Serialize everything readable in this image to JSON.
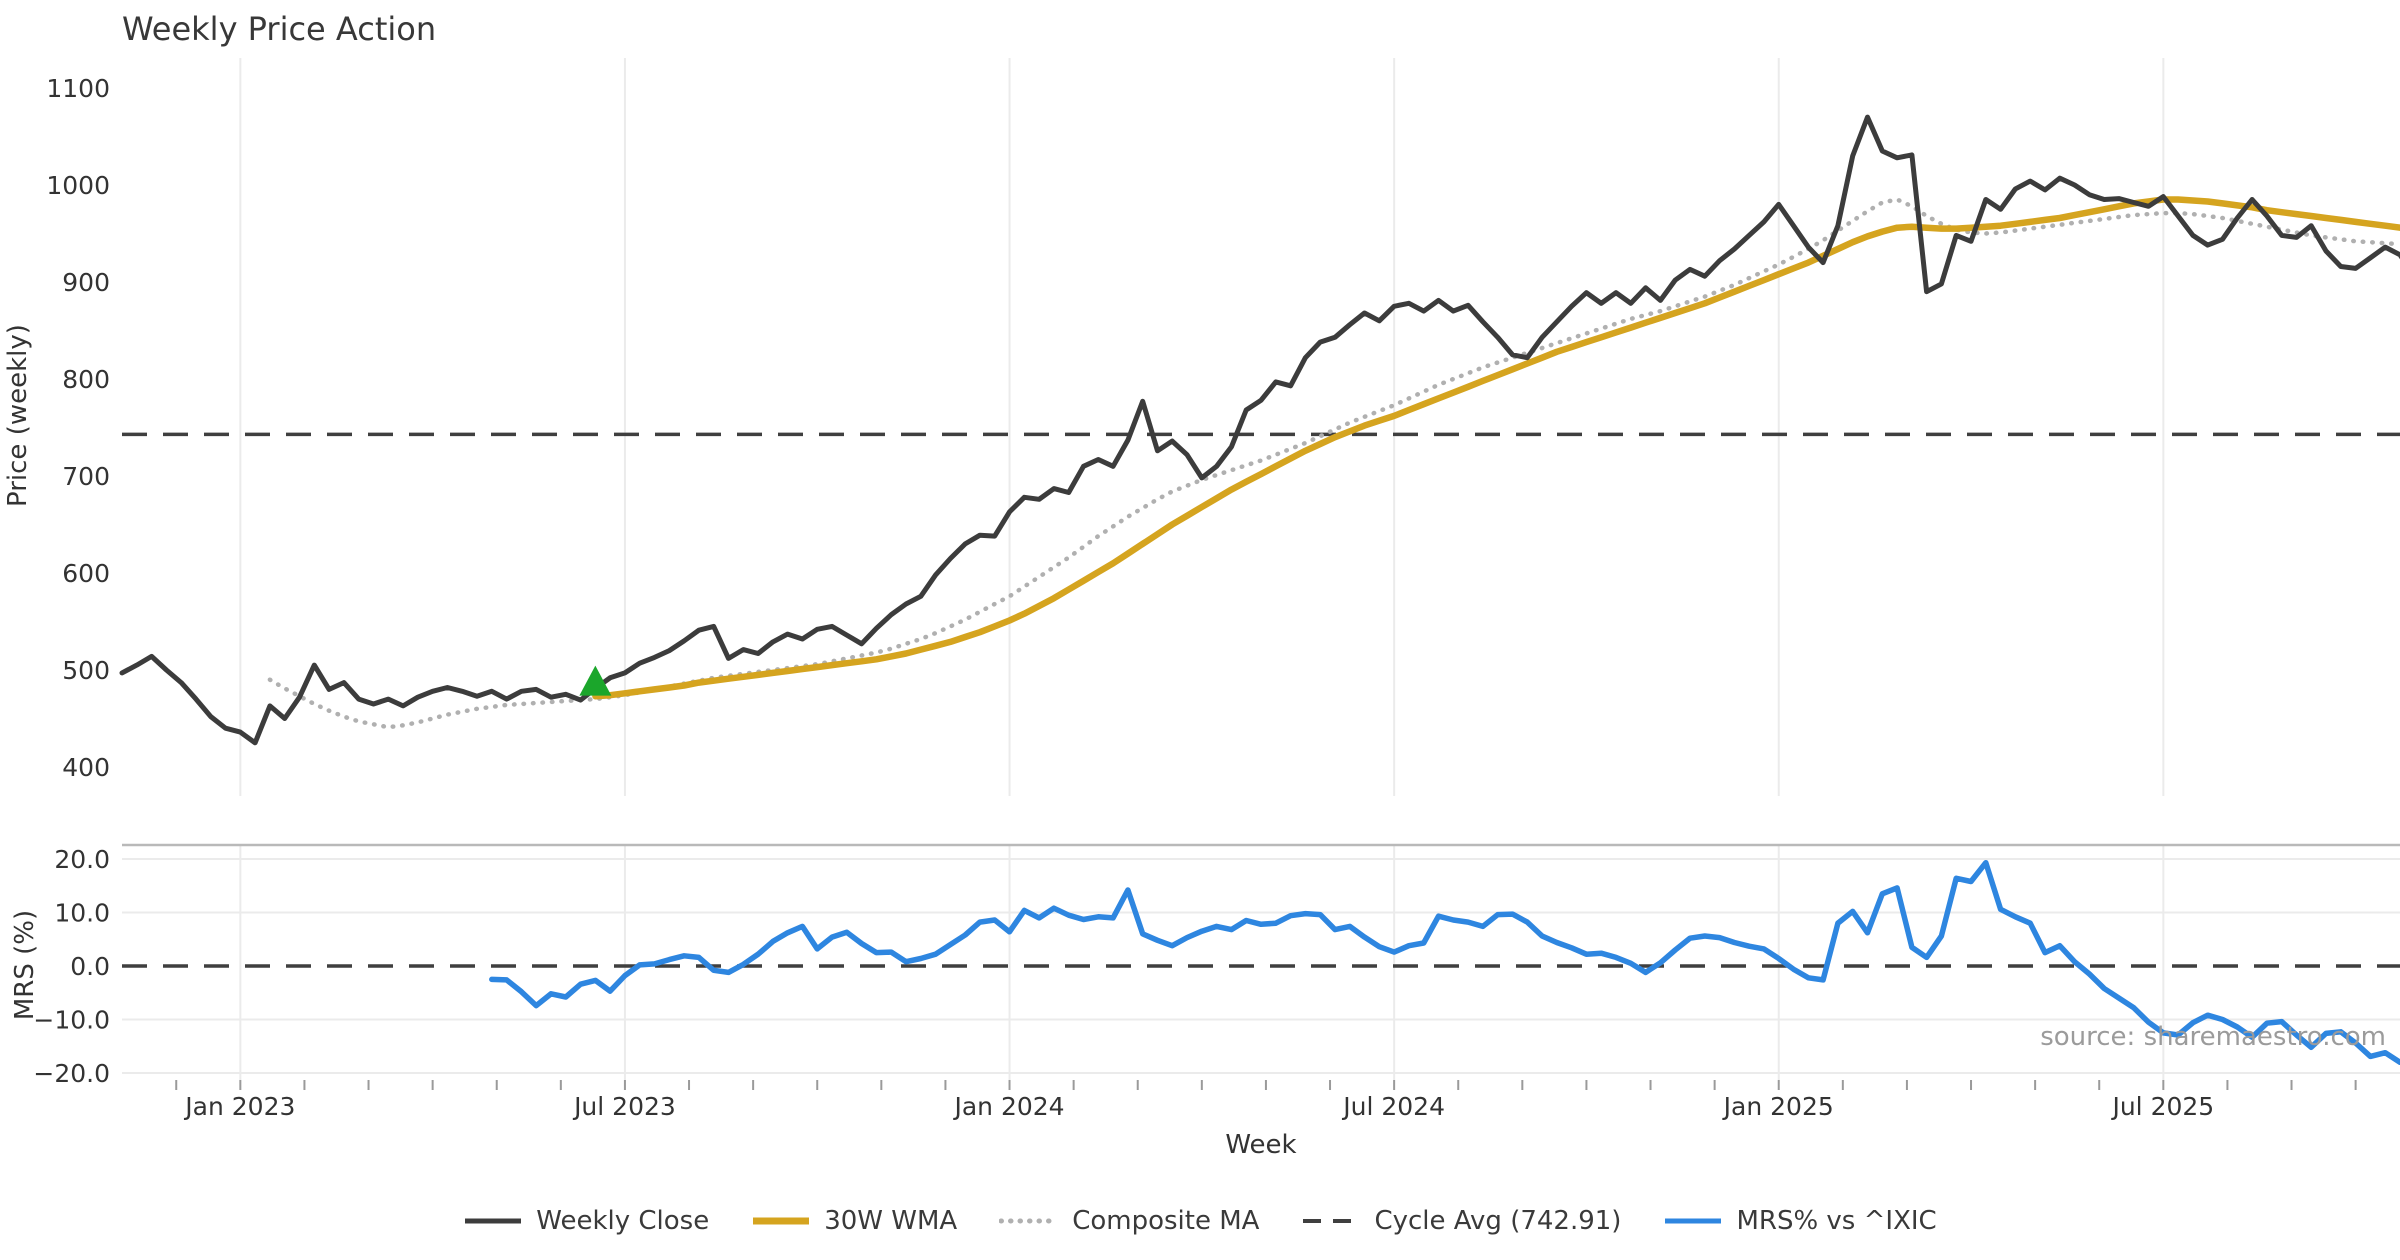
{
  "title": "Weekly Price Action",
  "source": "source: sharemaestro.com",
  "axes": {
    "price_label": "Price (weekly)",
    "mrs_label": "MRS (%)",
    "x_label": "Week"
  },
  "colors": {
    "close": "#3c3c3c",
    "wma": "#d5a41f",
    "composite": "#b0b0b0",
    "cycle": "#3f3f3f",
    "mrs": "#2e86e0",
    "marker_green": "#1ba62b",
    "grid": "#ebebeb",
    "panel_spine": "#b9b9b9",
    "tick_text": "#333333",
    "minor_tick": "#9a9a9a"
  },
  "legend": {
    "items": [
      {
        "label": "Weekly Close",
        "color": "#3c3c3c",
        "style": "solid"
      },
      {
        "label": "30W WMA",
        "color": "#d5a41f",
        "style": "solid-thick"
      },
      {
        "label": "Composite MA",
        "color": "#b0b0b0",
        "style": "dotted"
      },
      {
        "label": "Cycle Avg (742.91)",
        "color": "#3f3f3f",
        "style": "dashed"
      },
      {
        "label": "MRS% vs ^IXIC",
        "color": "#2e86e0",
        "style": "solid"
      }
    ]
  },
  "chart_data": [
    {
      "type": "line",
      "panel": "price",
      "title": "Weekly Price Action",
      "xlabel": "Week",
      "ylabel": "Price (weekly)",
      "ylim": [
        400,
        1100
      ],
      "yticks": [
        400,
        500,
        600,
        700,
        800,
        900,
        1000,
        1100
      ],
      "x_unit": "week_index",
      "x_range": [
        0,
        154
      ],
      "x_ticks": [
        {
          "week": 8,
          "label": "Jan 2023"
        },
        {
          "week": 34,
          "label": "Jul 2023"
        },
        {
          "week": 60,
          "label": "Jan 2024"
        },
        {
          "week": 86,
          "label": "Jul 2024"
        },
        {
          "week": 112,
          "label": "Jan 2025"
        },
        {
          "week": 138,
          "label": "Jul 2025"
        }
      ],
      "grid": "vertical-only",
      "legend_position": "bottom-center",
      "series": [
        {
          "name": "Weekly Close",
          "color": "#3c3c3c",
          "style": "solid",
          "width": 5,
          "start_week": 0,
          "values": [
            497,
            505,
            514,
            500,
            487,
            470,
            452,
            440,
            436,
            425,
            463,
            450,
            472,
            505,
            480,
            487,
            470,
            465,
            470,
            463,
            472,
            478,
            482,
            478,
            473,
            478,
            470,
            478,
            480,
            472,
            475,
            469,
            481,
            492,
            497,
            507,
            513,
            520,
            530,
            541,
            545,
            512,
            521,
            517,
            529,
            537,
            532,
            542,
            545,
            536,
            527,
            543,
            557,
            568,
            576,
            598,
            615,
            630,
            639,
            638,
            663,
            678,
            676,
            687,
            683,
            710,
            717,
            710,
            737,
            777,
            726,
            736,
            722,
            698,
            710,
            730,
            768,
            778,
            797,
            793,
            822,
            838,
            843,
            856,
            868,
            860,
            875,
            878,
            870,
            881,
            870,
            876,
            859,
            843,
            825,
            822,
            843,
            859,
            875,
            889,
            878,
            889,
            878,
            894,
            881,
            902,
            913,
            906,
            922,
            934,
            948,
            962,
            980,
            958,
            936,
            920,
            958,
            1030,
            1070,
            1035,
            1028,
            1031,
            890,
            898,
            948,
            942,
            985,
            975,
            996,
            1004,
            995,
            1007,
            1000,
            990,
            985,
            986,
            982,
            978,
            988,
            968,
            948,
            938,
            944,
            966,
            985,
            968,
            948,
            946,
            958,
            932,
            916,
            914,
            925,
            936,
            928,
            906
          ]
        },
        {
          "name": "30W WMA",
          "color": "#d5a41f",
          "style": "solid",
          "width": 6.5,
          "start_week": 32,
          "values": [
            473,
            474,
            476,
            478,
            480,
            482,
            484,
            487,
            489,
            491,
            493,
            495,
            497,
            499,
            501,
            503,
            505,
            507,
            509,
            511,
            514,
            517,
            521,
            525,
            529,
            534,
            539,
            545,
            551,
            558,
            566,
            574,
            583,
            592,
            601,
            610,
            620,
            630,
            640,
            650,
            659,
            668,
            677,
            686,
            694,
            702,
            710,
            718,
            726,
            733,
            740,
            746,
            752,
            757,
            762,
            768,
            774,
            780,
            786,
            792,
            798,
            804,
            810,
            816,
            822,
            828,
            833,
            838,
            843,
            848,
            853,
            858,
            863,
            868,
            873,
            878,
            884,
            890,
            896,
            902,
            908,
            914,
            920,
            927,
            934,
            941,
            947,
            952,
            956,
            957,
            956,
            955,
            955,
            956,
            957,
            958,
            960,
            962,
            964,
            966,
            969,
            972,
            975,
            978,
            981,
            983,
            985,
            985,
            984,
            983,
            981,
            979,
            977,
            974,
            972,
            970,
            968,
            966,
            964,
            962,
            960,
            958,
            956
          ]
        },
        {
          "name": "Composite MA",
          "color": "#b0b0b0",
          "style": "dotted",
          "width": 4.5,
          "start_week": 10,
          "values": [
            490,
            481,
            473,
            465,
            458,
            452,
            447,
            444,
            441,
            443,
            446,
            450,
            454,
            457,
            460,
            462,
            464,
            465,
            466,
            467,
            468,
            469,
            470,
            472,
            474,
            477,
            480,
            483,
            486,
            489,
            492,
            494,
            496,
            498,
            500,
            502,
            504,
            506,
            509,
            512,
            515,
            518,
            522,
            527,
            532,
            538,
            545,
            552,
            560,
            568,
            576,
            586,
            596,
            606,
            616,
            627,
            638,
            648,
            658,
            667,
            676,
            684,
            690,
            696,
            701,
            706,
            711,
            716,
            722,
            728,
            734,
            741,
            748,
            755,
            761,
            767,
            773,
            780,
            787,
            794,
            800,
            806,
            812,
            817,
            822,
            827,
            832,
            837,
            842,
            847,
            852,
            857,
            862,
            866,
            870,
            875,
            880,
            885,
            891,
            897,
            904,
            911,
            918,
            926,
            934,
            943,
            953,
            963,
            973,
            982,
            985,
            978,
            968,
            960,
            954,
            951,
            950,
            951,
            953,
            955,
            957,
            959,
            961,
            963,
            965,
            967,
            969,
            970,
            971,
            971,
            970,
            968,
            966,
            963,
            960,
            957,
            954,
            951,
            948,
            946,
            944,
            942,
            941,
            940,
            939
          ]
        },
        {
          "name": "Cycle Avg",
          "color": "#3f3f3f",
          "style": "dashed",
          "width": 3.5,
          "constant": 742.91
        }
      ],
      "markers": [
        {
          "shape": "triangle-up",
          "color": "#1ba62b",
          "week": 32,
          "price": 487
        }
      ]
    },
    {
      "type": "line",
      "panel": "mrs",
      "ylabel": "MRS (%)",
      "ylim": [
        -21.5,
        22
      ],
      "yticks": [
        -20,
        -10,
        0,
        10,
        20
      ],
      "grid": "both",
      "zero_line": {
        "style": "dashed",
        "color": "#3f3f3f",
        "value": 0
      },
      "series": [
        {
          "name": "MRS% vs ^IXIC",
          "color": "#2e86e0",
          "style": "solid",
          "width": 5.5,
          "start_week": 25,
          "values": [
            -2.5,
            -2.6,
            -4.8,
            -7.4,
            -5.2,
            -5.8,
            -3.4,
            -2.7,
            -4.7,
            -1.8,
            0.2,
            0.4,
            1.2,
            1.9,
            1.6,
            -0.8,
            -1.2,
            0.3,
            2.2,
            4.6,
            6.2,
            7.4,
            3.2,
            5.4,
            6.3,
            4.2,
            2.5,
            2.6,
            0.8,
            1.4,
            2.2,
            4.0,
            5.8,
            8.2,
            8.6,
            6.4,
            10.4,
            9.0,
            10.8,
            9.5,
            8.7,
            9.2,
            9.0,
            14.2,
            6.0,
            4.8,
            3.8,
            5.3,
            6.5,
            7.4,
            6.8,
            8.5,
            7.8,
            8.0,
            9.4,
            9.8,
            9.6,
            6.8,
            7.4,
            5.4,
            3.6,
            2.6,
            3.8,
            4.3,
            9.3,
            8.6,
            8.2,
            7.4,
            9.6,
            9.7,
            8.2,
            5.6,
            4.4,
            3.4,
            2.2,
            2.4,
            1.6,
            0.5,
            -1.2,
            0.6,
            3.0,
            5.2,
            5.6,
            5.3,
            4.4,
            3.7,
            3.2,
            1.4,
            -0.6,
            -2.2,
            -2.6,
            8.0,
            10.2,
            6.2,
            13.5,
            14.6,
            3.5,
            1.6,
            5.6,
            16.4,
            15.8,
            19.3,
            10.6,
            9.2,
            8.0,
            2.5,
            3.8,
            0.8,
            -1.5,
            -4.2,
            -6.0,
            -7.8,
            -10.5,
            -12.5,
            -12.9,
            -10.6,
            -9.2,
            -10.0,
            -11.4,
            -13.3,
            -10.7,
            -10.4,
            -12.9,
            -15.2,
            -12.6,
            -12.3,
            -14.4,
            -16.9,
            -16.2,
            -18.0
          ]
        }
      ]
    }
  ]
}
